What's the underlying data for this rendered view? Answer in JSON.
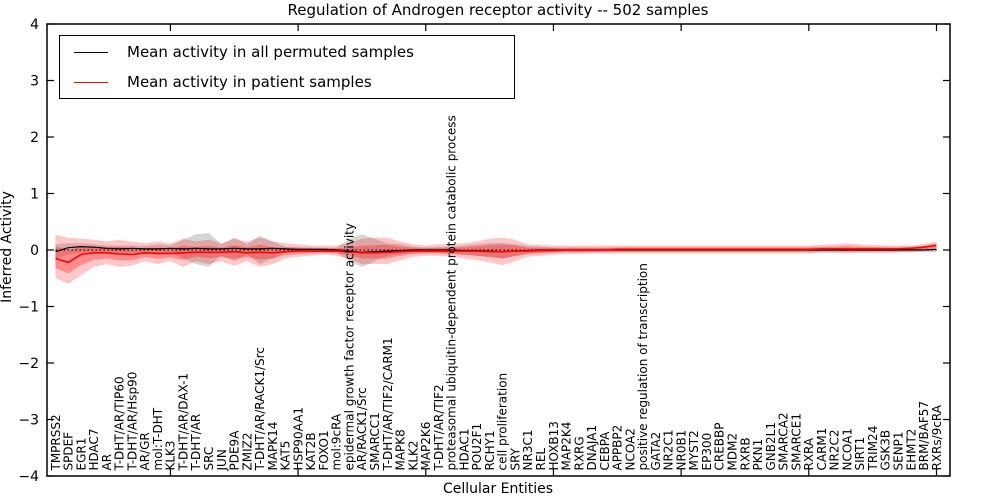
{
  "chart_data": {
    "type": "line",
    "title": "Regulation of Androgen receptor activity -- 502 samples",
    "xlabel": "Cellular Entities",
    "ylabel": "Inferred Activity",
    "ylim": [
      -4,
      4
    ],
    "yticks": [
      "4",
      "3",
      "2",
      "1",
      "0",
      "−1",
      "−2",
      "−3",
      "−4"
    ],
    "grid": false,
    "zero_line": {
      "y": 0,
      "style": "dashed",
      "color": "#000000"
    },
    "legend": {
      "position": "upper left",
      "entries": [
        {
          "label": "Mean activity in all permuted samples",
          "color": "#000000"
        },
        {
          "label": "Mean activity in patient samples",
          "color": "#ff0000"
        }
      ]
    },
    "categories": [
      "TMPRSS2",
      "SPDEF",
      "EGR1",
      "HDAC7",
      "AR",
      "T-DHT/AR/TIP60",
      "T-DHT/AR/Hsp90",
      "AR/GR",
      "mol:T-DHT",
      "KLK3",
      "T-DHT/AR/DAX-1",
      "T-DHT/AR",
      "SRC",
      "JUN",
      "PDE9A",
      "ZMIZ2",
      "T-DHT/AR/RACK1/Src",
      "MAPK14",
      "KAT5",
      "HSP90AA1",
      "KAT2B",
      "FOXO1",
      "mol:9cRA",
      "epidermal growth factor receptor activity",
      "AR/RACK1/Src",
      "SMARCC1",
      "T-DHT/AR/TIF2/CARM1",
      "MAPK8",
      "KLK2",
      "MAP2K6",
      "T-DHT/AR/TIF2",
      "proteasomal ubiquitin-dependent protein catabolic process",
      "HDAC1",
      "POU2F1",
      "RCHY1",
      "cell proliferation",
      "SRY",
      "NR3C1",
      "REL",
      "HOXB13",
      "MAP2K4",
      "RXRG",
      "DNAJA1",
      "CEBPA",
      "APPBP2",
      "NCOA2",
      "positive regulation of transcription",
      "GATA2",
      "NR2C1",
      "NR0B1",
      "MYST2",
      "EP300",
      "CREBBP",
      "MDM2",
      "RXRB",
      "PKN1",
      "GNB2L1",
      "SMARCA2",
      "SMARCE1",
      "RXRA",
      "CARM1",
      "NR2C2",
      "NCOA1",
      "SIRT1",
      "TRIM24",
      "GSK3B",
      "SENP1",
      "EHMT2",
      "BRM/BAF57",
      "RXRs/9cRA"
    ],
    "series": [
      {
        "name": "Mean activity in all permuted samples",
        "color": "#000000",
        "band_color": "#888888",
        "mean": [
          -0.03,
          0.04,
          0.06,
          0.05,
          0.03,
          0.02,
          0.03,
          0.02,
          0.02,
          0.03,
          0.02,
          0.03,
          0.02,
          0.02,
          0.03,
          0.02,
          0.02,
          0.03,
          0.02,
          0.01,
          0.01,
          0.01,
          0.0,
          -0.02,
          -0.04,
          -0.03,
          -0.02,
          -0.01,
          0.0,
          0.0,
          0.0,
          0.0,
          -0.01,
          -0.01,
          -0.02,
          -0.03,
          -0.02,
          -0.01,
          0.0,
          0.0,
          0.0,
          0.0,
          0.0,
          0.0,
          0.0,
          0.0,
          0.0,
          0.0,
          0.0,
          0.0,
          0.0,
          0.0,
          0.0,
          0.0,
          0.0,
          0.0,
          0.0,
          0.0,
          0.0,
          0.0,
          0.0,
          0.0,
          0.0,
          0.0,
          0.0,
          0.0,
          0.0,
          0.0,
          0.0,
          0.01
        ],
        "lo": [
          -0.15,
          -0.08,
          -0.05,
          -0.06,
          -0.05,
          -0.06,
          -0.05,
          -0.05,
          -0.08,
          -0.06,
          -0.15,
          -0.25,
          -0.3,
          -0.1,
          -0.2,
          -0.08,
          -0.25,
          -0.15,
          -0.05,
          -0.04,
          -0.04,
          -0.03,
          -0.04,
          -0.2,
          -0.3,
          -0.2,
          -0.1,
          -0.08,
          -0.05,
          -0.04,
          -0.05,
          -0.06,
          -0.08,
          -0.1,
          -0.12,
          -0.15,
          -0.1,
          -0.06,
          -0.05,
          -0.04,
          -0.04,
          -0.04,
          -0.04,
          -0.04,
          -0.04,
          -0.04,
          -0.04,
          -0.04,
          -0.04,
          -0.04,
          -0.04,
          -0.04,
          -0.04,
          -0.04,
          -0.04,
          -0.04,
          -0.04,
          -0.04,
          -0.04,
          -0.04,
          -0.04,
          -0.04,
          -0.04,
          -0.04,
          -0.04,
          -0.04,
          -0.04,
          -0.04,
          -0.04,
          -0.04
        ],
        "hi": [
          0.1,
          0.12,
          0.12,
          0.1,
          0.08,
          0.08,
          0.08,
          0.07,
          0.1,
          0.08,
          0.18,
          0.28,
          0.3,
          0.1,
          0.22,
          0.1,
          0.25,
          0.15,
          0.06,
          0.05,
          0.05,
          0.04,
          0.04,
          0.2,
          0.28,
          0.2,
          0.12,
          0.1,
          0.06,
          0.05,
          0.05,
          0.06,
          0.08,
          0.1,
          0.12,
          0.13,
          0.1,
          0.07,
          0.06,
          0.05,
          0.04,
          0.04,
          0.04,
          0.04,
          0.04,
          0.04,
          0.04,
          0.04,
          0.04,
          0.04,
          0.04,
          0.04,
          0.04,
          0.04,
          0.04,
          0.04,
          0.04,
          0.04,
          0.04,
          0.04,
          0.04,
          0.04,
          0.04,
          0.04,
          0.04,
          0.04,
          0.04,
          0.04,
          0.04,
          0.04
        ]
      },
      {
        "name": "Mean activity in patient samples",
        "color": "#ff0000",
        "band_color": "#ff0000",
        "mean": [
          -0.15,
          -0.22,
          -0.08,
          -0.05,
          -0.05,
          -0.07,
          -0.08,
          -0.05,
          -0.06,
          -0.06,
          -0.05,
          -0.04,
          -0.04,
          -0.04,
          -0.03,
          -0.05,
          -0.04,
          -0.05,
          -0.03,
          -0.02,
          -0.02,
          -0.02,
          -0.02,
          -0.03,
          -0.05,
          -0.05,
          -0.04,
          -0.03,
          -0.02,
          -0.02,
          -0.02,
          -0.02,
          -0.02,
          -0.02,
          -0.03,
          -0.03,
          -0.02,
          -0.02,
          -0.01,
          -0.01,
          0.0,
          0.0,
          0.0,
          0.0,
          0.01,
          0.01,
          0.01,
          0.01,
          0.01,
          0.01,
          0.01,
          0.01,
          0.01,
          0.01,
          0.01,
          0.01,
          0.01,
          0.01,
          0.01,
          0.01,
          0.02,
          0.02,
          0.02,
          0.02,
          0.02,
          0.02,
          0.02,
          0.03,
          0.05,
          0.08
        ],
        "lo": [
          -0.5,
          -0.6,
          -0.45,
          -0.3,
          -0.25,
          -0.3,
          -0.28,
          -0.2,
          -0.25,
          -0.2,
          -0.3,
          -0.2,
          -0.25,
          -0.2,
          -0.28,
          -0.2,
          -0.3,
          -0.25,
          -0.15,
          -0.12,
          -0.1,
          -0.08,
          -0.1,
          -0.15,
          -0.25,
          -0.25,
          -0.25,
          -0.18,
          -0.12,
          -0.1,
          -0.1,
          -0.12,
          -0.15,
          -0.18,
          -0.22,
          -0.27,
          -0.2,
          -0.12,
          -0.1,
          -0.08,
          -0.07,
          -0.07,
          -0.06,
          -0.06,
          -0.06,
          -0.06,
          -0.06,
          -0.06,
          -0.06,
          -0.06,
          -0.06,
          -0.06,
          -0.06,
          -0.06,
          -0.06,
          -0.06,
          -0.06,
          -0.06,
          -0.06,
          -0.06,
          -0.05,
          -0.05,
          -0.06,
          -0.05,
          -0.05,
          -0.05,
          -0.04,
          -0.03,
          -0.02,
          0.0
        ],
        "hi": [
          0.27,
          0.22,
          0.2,
          0.18,
          0.15,
          0.18,
          0.15,
          0.12,
          0.15,
          0.12,
          0.2,
          0.15,
          0.18,
          0.12,
          0.2,
          0.15,
          0.22,
          0.15,
          0.12,
          0.1,
          0.08,
          0.08,
          0.08,
          0.12,
          0.2,
          0.22,
          0.22,
          0.15,
          0.1,
          0.08,
          0.1,
          0.1,
          0.12,
          0.15,
          0.2,
          0.22,
          0.18,
          0.1,
          0.09,
          0.08,
          0.08,
          0.08,
          0.08,
          0.08,
          0.08,
          0.08,
          0.08,
          0.08,
          0.08,
          0.08,
          0.08,
          0.08,
          0.08,
          0.08,
          0.08,
          0.08,
          0.08,
          0.08,
          0.08,
          0.08,
          0.09,
          0.1,
          0.12,
          0.1,
          0.09,
          0.08,
          0.08,
          0.08,
          0.1,
          0.15
        ]
      }
    ]
  }
}
